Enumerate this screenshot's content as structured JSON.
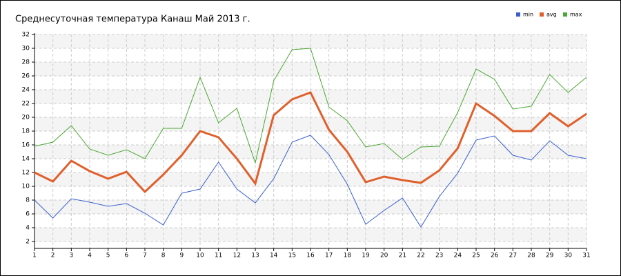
{
  "chart_data": {
    "type": "line",
    "title": "Среднесуточная температура Канаш  Май 2013 г.",
    "x": [
      1,
      2,
      3,
      4,
      5,
      6,
      7,
      8,
      9,
      10,
      11,
      12,
      13,
      14,
      15,
      16,
      17,
      18,
      19,
      20,
      21,
      22,
      23,
      24,
      25,
      26,
      27,
      28,
      29,
      30,
      31
    ],
    "series": [
      {
        "name": "min",
        "color": "#3a5fd0",
        "values": [
          8.0,
          5.4,
          8.2,
          7.7,
          7.1,
          7.5,
          6.1,
          4.4,
          9.0,
          9.6,
          13.5,
          9.6,
          7.6,
          11.1,
          16.4,
          17.4,
          14.6,
          10.3,
          4.5,
          6.5,
          8.3,
          4.1,
          8.5,
          11.9,
          16.7,
          17.3,
          14.5,
          13.8,
          16.6,
          14.5,
          14.0
        ]
      },
      {
        "name": "avg",
        "color": "#e0602c",
        "values": [
          12.0,
          10.7,
          13.7,
          12.2,
          11.1,
          12.1,
          9.2,
          11.7,
          14.5,
          18.0,
          17.1,
          14.0,
          10.4,
          20.3,
          22.6,
          23.6,
          18.2,
          15.0,
          10.6,
          11.4,
          10.9,
          10.5,
          12.3,
          15.5,
          22.0,
          20.2,
          18.0,
          18.0,
          20.6,
          18.7,
          20.5
        ]
      },
      {
        "name": "max",
        "color": "#4aa832",
        "values": [
          15.8,
          16.4,
          18.8,
          15.4,
          14.5,
          15.3,
          14.0,
          18.4,
          18.4,
          25.8,
          19.2,
          21.3,
          13.4,
          25.3,
          29.8,
          30.0,
          21.5,
          19.5,
          15.7,
          16.2,
          13.9,
          15.7,
          15.8,
          20.7,
          27.0,
          25.5,
          21.2,
          21.6,
          26.2,
          23.6,
          25.8
        ]
      }
    ],
    "xlim": [
      1,
      31
    ],
    "xticks": [
      1,
      2,
      3,
      4,
      5,
      6,
      7,
      8,
      9,
      10,
      11,
      12,
      13,
      14,
      15,
      16,
      17,
      18,
      19,
      20,
      21,
      22,
      23,
      24,
      25,
      26,
      27,
      28,
      29,
      30,
      31
    ],
    "ylim": [
      1,
      32
    ],
    "yticks": [
      2,
      4,
      6,
      8,
      10,
      12,
      14,
      16,
      18,
      20,
      22,
      24,
      26,
      28,
      30,
      32
    ],
    "grid": true,
    "legend": "top-right"
  }
}
